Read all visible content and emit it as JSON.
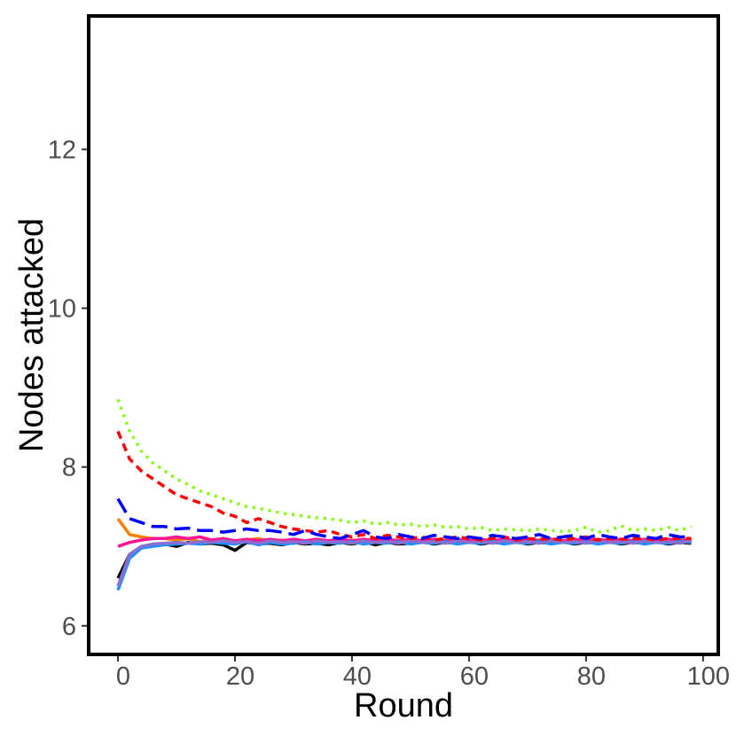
{
  "chart_data": {
    "type": "line",
    "xlabel": "Round",
    "ylabel": "Nodes attacked",
    "xlim": [
      -5,
      102.6
    ],
    "ylim": [
      5.64,
      13.68
    ],
    "xticks": [
      0,
      20,
      40,
      60,
      80,
      100
    ],
    "yticks": [
      6,
      8,
      10,
      12
    ],
    "grid": false,
    "x": [
      0,
      2,
      4,
      6,
      8,
      10,
      12,
      14,
      16,
      18,
      20,
      22,
      24,
      26,
      28,
      30,
      32,
      34,
      36,
      38,
      40,
      42,
      44,
      46,
      48,
      50,
      52,
      54,
      56,
      58,
      60,
      62,
      64,
      66,
      68,
      70,
      72,
      74,
      76,
      78,
      80,
      82,
      84,
      86,
      88,
      90,
      92,
      94,
      96,
      98
    ],
    "series": [
      {
        "color": "#ff7f00",
        "dash": "solid",
        "values": [
          7.35,
          7.15,
          7.12,
          7.1,
          7.1,
          7.08,
          7.1,
          7.06,
          7.08,
          7.1,
          7.05,
          7.08,
          7.1,
          7.06,
          7.08,
          7.05,
          7.07,
          7.08,
          7.05,
          7.06,
          7.08,
          7.05,
          7.07,
          7.06,
          7.08,
          7.05,
          7.07,
          7.06,
          7.08,
          7.05,
          7.07,
          7.06,
          7.08,
          7.05,
          7.07,
          7.06,
          7.08,
          7.05,
          7.07,
          7.06,
          7.08,
          7.05,
          7.07,
          7.06,
          7.08,
          7.05,
          7.07,
          7.06,
          7.08,
          7.06
        ]
      },
      {
        "color": "#000000",
        "dash": "solid",
        "values": [
          6.6,
          6.9,
          7.0,
          7.02,
          7.03,
          7.0,
          7.05,
          7.03,
          7.04,
          7.02,
          6.95,
          7.05,
          7.03,
          7.04,
          7.02,
          7.05,
          7.03,
          7.04,
          7.02,
          7.05,
          7.03,
          7.06,
          7.02,
          7.05,
          7.03,
          7.04,
          7.06,
          7.03,
          7.05,
          7.04,
          7.06,
          7.03,
          7.05,
          7.04,
          7.06,
          7.03,
          7.05,
          7.04,
          7.06,
          7.03,
          7.05,
          7.04,
          7.06,
          7.03,
          7.05,
          7.04,
          7.06,
          7.03,
          7.05,
          7.04
        ]
      },
      {
        "color": "#ff1493",
        "dash": "solid",
        "values": [
          7.0,
          7.05,
          7.08,
          7.1,
          7.1,
          7.12,
          7.1,
          7.12,
          7.08,
          7.1,
          7.07,
          7.09,
          7.07,
          7.09,
          7.07,
          7.09,
          7.07,
          7.09,
          7.07,
          7.09,
          7.07,
          7.09,
          7.07,
          7.09,
          7.07,
          7.09,
          7.07,
          7.09,
          7.07,
          7.09,
          7.07,
          7.09,
          7.07,
          7.09,
          7.07,
          7.09,
          7.07,
          7.09,
          7.07,
          7.09,
          7.07,
          7.09,
          7.07,
          7.09,
          7.07,
          7.09,
          7.07,
          7.09,
          7.07,
          7.09
        ]
      },
      {
        "color": "#1e90ff",
        "dash": "solid",
        "values": [
          6.45,
          6.85,
          6.98,
          7.0,
          7.02,
          7.03,
          7.04,
          7.03,
          7.05,
          7.04,
          7.03,
          7.06,
          7.02,
          7.05,
          7.03,
          7.04,
          7.06,
          7.03,
          7.05,
          7.04,
          7.06,
          7.03,
          7.05,
          7.04,
          7.06,
          7.03,
          7.05,
          7.04,
          7.06,
          7.03,
          7.05,
          7.04,
          7.06,
          7.03,
          7.05,
          7.04,
          7.06,
          7.03,
          7.05,
          7.04,
          7.06,
          7.03,
          7.05,
          7.04,
          7.06,
          7.03,
          7.05,
          7.04,
          7.06,
          7.05
        ]
      },
      {
        "color": "#8a6fd1",
        "dash": "solid",
        "values": [
          6.5,
          6.9,
          7.0,
          7.03,
          7.04,
          7.05,
          7.04,
          7.06,
          7.05,
          7.07,
          7.05,
          7.06,
          7.04,
          7.07,
          7.05,
          7.06,
          7.04,
          7.07,
          7.05,
          7.06,
          7.04,
          7.07,
          7.05,
          7.06,
          7.04,
          7.07,
          7.05,
          7.06,
          7.04,
          7.07,
          7.05,
          7.06,
          7.04,
          7.07,
          7.05,
          7.06,
          7.04,
          7.07,
          7.05,
          7.06,
          7.04,
          7.07,
          7.05,
          7.06,
          7.04,
          7.07,
          7.05,
          7.06,
          7.04,
          7.07
        ]
      },
      {
        "color": "#ff0000",
        "dash": "dashed",
        "values": [
          8.45,
          8.1,
          7.95,
          7.85,
          7.75,
          7.65,
          7.6,
          7.55,
          7.5,
          7.42,
          7.38,
          7.3,
          7.35,
          7.3,
          7.25,
          7.22,
          7.2,
          7.18,
          7.2,
          7.15,
          7.12,
          7.15,
          7.1,
          7.14,
          7.12,
          7.1,
          7.12,
          7.08,
          7.1,
          7.12,
          7.1,
          7.08,
          7.1,
          7.12,
          7.08,
          7.1,
          7.09,
          7.1,
          7.08,
          7.1,
          7.12,
          7.08,
          7.1,
          7.09,
          7.1,
          7.1,
          7.08,
          7.1,
          7.1,
          7.1
        ]
      },
      {
        "color": "#7fff00",
        "dash": "dotted",
        "values": [
          8.85,
          8.45,
          8.2,
          8.05,
          7.95,
          7.85,
          7.78,
          7.7,
          7.65,
          7.6,
          7.55,
          7.5,
          7.48,
          7.45,
          7.42,
          7.4,
          7.38,
          7.36,
          7.35,
          7.33,
          7.3,
          7.32,
          7.28,
          7.3,
          7.27,
          7.28,
          7.25,
          7.27,
          7.24,
          7.25,
          7.22,
          7.24,
          7.2,
          7.22,
          7.21,
          7.2,
          7.22,
          7.2,
          7.19,
          7.2,
          7.24,
          7.18,
          7.2,
          7.26,
          7.2,
          7.22,
          7.2,
          7.24,
          7.2,
          7.25
        ]
      },
      {
        "color": "#0000ff",
        "dash": "longdash",
        "values": [
          7.6,
          7.35,
          7.3,
          7.25,
          7.25,
          7.22,
          7.23,
          7.2,
          7.2,
          7.18,
          7.2,
          7.22,
          7.2,
          7.2,
          7.18,
          7.15,
          7.2,
          7.15,
          7.12,
          7.1,
          7.15,
          7.2,
          7.12,
          7.1,
          7.15,
          7.12,
          7.1,
          7.14,
          7.12,
          7.1,
          7.12,
          7.1,
          7.14,
          7.12,
          7.1,
          7.12,
          7.15,
          7.1,
          7.12,
          7.14,
          7.1,
          7.15,
          7.12,
          7.1,
          7.14,
          7.12,
          7.1,
          7.15,
          7.12,
          7.12
        ]
      }
    ]
  }
}
